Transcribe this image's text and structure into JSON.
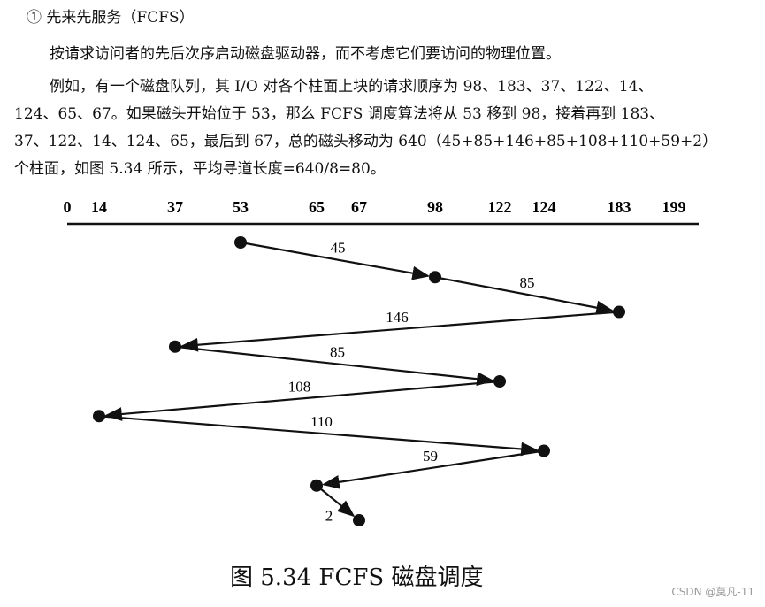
{
  "heading": "① 先来先服务（FCFS）",
  "paragraphs": {
    "intro": "按请求访问者的先后次序启动磁盘驱动器，而不考虑它们要访问的物理位置。",
    "example_line1": "例如，有一个磁盘队列，其 I/O 对各个柱面上块的请求顺序为 98、183、37、122、14、",
    "example_line2": "124、65、67。如果磁头开始位于 53，那么 FCFS 调度算法将从 53 移到 98，接着再到 183、",
    "example_line3": "37、122、14、124、65，最后到 67，总的磁头移动为 640（45+85+146+85+108+110+59+2）",
    "example_line4": "个柱面，如图 5.34 所示，平均寻道长度=640/8=80。"
  },
  "diagram": {
    "ticks": [
      "0",
      "14",
      "37",
      "53",
      "65",
      "67",
      "98",
      "122",
      "124",
      "183",
      "199"
    ],
    "sequence": [
      53,
      98,
      183,
      37,
      122,
      14,
      124,
      65,
      67
    ],
    "segment_labels": [
      "45",
      "85",
      "146",
      "85",
      "108",
      "110",
      "59",
      "2"
    ],
    "line_color": "#111111"
  },
  "caption": "图 5.34    FCFS 磁盘调度",
  "watermark": "CSDN @莫凡-11"
}
